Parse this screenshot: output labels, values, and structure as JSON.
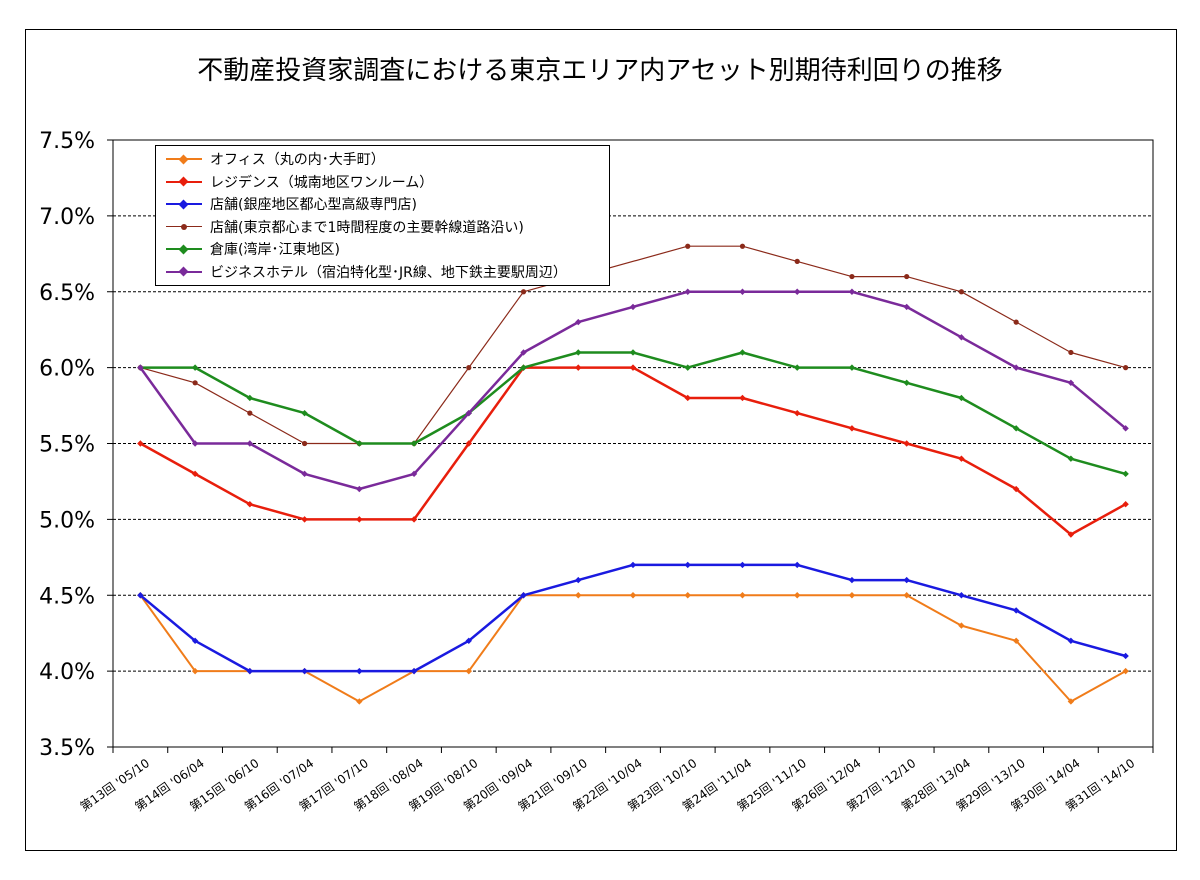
{
  "chart_data": {
    "type": "line",
    "title": "不動産投資家調査における東京エリア内アセット別期待利回りの推移",
    "xlabel": "",
    "ylabel": "",
    "ylim": [
      3.5,
      7.5
    ],
    "yticks": [
      "3.5%",
      "4.0%",
      "4.5%",
      "5.0%",
      "5.5%",
      "6.0%",
      "6.5%",
      "7.0%",
      "7.5%"
    ],
    "grid": true,
    "legend_position": "top-left",
    "categories": [
      "第13回 '05/10",
      "第14回 '06/04",
      "第15回 '06/10",
      "第16回 '07/04",
      "第17回 '07/10",
      "第18回 '08/04",
      "第19回 '08/10",
      "第20回 '09/04",
      "第21回 '09/10",
      "第22回 '10/04",
      "第23回 '10/10",
      "第24回 '11/04",
      "第25回 '11/10",
      "第26回 '12/04",
      "第27回 '12/10",
      "第28回 '13/04",
      "第29回 '13/10",
      "第30回 '14/04",
      "第31回 '14/10"
    ],
    "series": [
      {
        "name": "オフィス（丸の内･大手町）",
        "color": "#f07c1a",
        "marker": "diamond",
        "width": 2,
        "values": [
          4.5,
          4.0,
          4.0,
          4.0,
          3.8,
          4.0,
          4.0,
          4.5,
          4.5,
          4.5,
          4.5,
          4.5,
          4.5,
          4.5,
          4.5,
          4.3,
          4.2,
          3.8,
          4.0
        ]
      },
      {
        "name": "レジデンス（城南地区ワンルーム）",
        "color": "#e81e0c",
        "marker": "diamond",
        "width": 2.5,
        "values": [
          5.5,
          5.3,
          5.1,
          5.0,
          5.0,
          5.0,
          5.5,
          6.0,
          6.0,
          6.0,
          5.8,
          5.8,
          5.7,
          5.6,
          5.5,
          5.4,
          5.2,
          4.9,
          5.1
        ]
      },
      {
        "name": "店舗(銀座地区都心型高級専門店)",
        "color": "#1a1ae0",
        "marker": "diamond",
        "width": 2.5,
        "values": [
          4.5,
          4.2,
          4.0,
          4.0,
          4.0,
          4.0,
          4.2,
          4.5,
          4.6,
          4.7,
          4.7,
          4.7,
          4.7,
          4.6,
          4.6,
          4.5,
          4.4,
          4.2,
          4.1
        ]
      },
      {
        "name": "店舗(東京都心まで1時間程度の主要幹線道路沿い)",
        "color": "#8b2a1a",
        "marker": "dot",
        "width": 1.2,
        "values": [
          6.0,
          5.9,
          5.7,
          5.5,
          5.5,
          5.5,
          6.0,
          6.5,
          null,
          null,
          6.8,
          6.8,
          6.7,
          6.6,
          6.6,
          6.5,
          6.3,
          6.1,
          6.0
        ]
      },
      {
        "name": "倉庫(湾岸･江東地区)",
        "color": "#1e8c1e",
        "marker": "diamond",
        "width": 2.5,
        "values": [
          6.0,
          6.0,
          5.8,
          5.7,
          5.5,
          5.5,
          5.7,
          6.0,
          6.1,
          6.1,
          6.0,
          6.1,
          6.0,
          6.0,
          5.9,
          5.8,
          5.6,
          5.4,
          5.3
        ]
      },
      {
        "name": "ビジネスホテル（宿泊特化型･JR線、地下鉄主要駅周辺）",
        "color": "#7a2a9a",
        "marker": "diamond",
        "width": 2.5,
        "values": [
          6.0,
          5.5,
          5.5,
          5.3,
          5.2,
          5.3,
          5.7,
          6.1,
          6.3,
          6.4,
          6.5,
          6.5,
          6.5,
          6.5,
          6.4,
          6.2,
          6.0,
          5.9,
          5.6
        ]
      }
    ]
  }
}
